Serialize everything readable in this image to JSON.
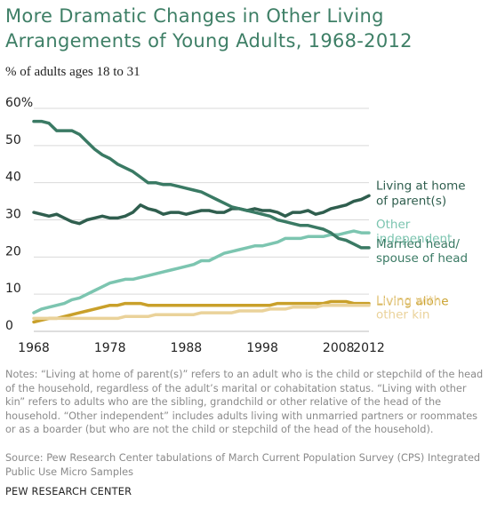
{
  "chart_data": {
    "type": "line",
    "title": "More Dramatic Changes in Other Living Arrangements of Young Adults, 1968-2012",
    "title_lines": [
      "More Dramatic Changes in Other Living",
      "Arrangements of Young Adults, 1968-2012"
    ],
    "subtitle": "% of adults ages 18 to 31",
    "xlabel": "",
    "ylabel": "",
    "xlim": [
      1968,
      2012
    ],
    "ylim": [
      0,
      60
    ],
    "x_ticks": [
      "1968",
      "1978",
      "1988",
      "1998",
      "2008",
      "2012"
    ],
    "x_tick_values": [
      1968,
      1978,
      1988,
      1998,
      2008,
      2012
    ],
    "y_ticks": [
      "0",
      "10",
      "20",
      "30",
      "40",
      "50",
      "60%"
    ],
    "y_tick_values": [
      0,
      10,
      20,
      30,
      40,
      50,
      60
    ],
    "grid": true,
    "legend": "direct labels at right end of lines",
    "x": [
      1968,
      1969,
      1970,
      1971,
      1972,
      1973,
      1974,
      1975,
      1976,
      1977,
      1978,
      1979,
      1980,
      1981,
      1982,
      1983,
      1984,
      1985,
      1986,
      1987,
      1988,
      1989,
      1990,
      1991,
      1992,
      1993,
      1994,
      1995,
      1996,
      1997,
      1998,
      1999,
      2000,
      2001,
      2002,
      2003,
      2004,
      2005,
      2006,
      2007,
      2008,
      2009,
      2010,
      2011,
      2012
    ],
    "series": [
      {
        "name": "Living at home of parent(s)",
        "label_lines": [
          "Living at home",
          "of parent(s)"
        ],
        "color": "#2f5e4e",
        "values": [
          32,
          31.5,
          31,
          31.5,
          30.5,
          29.5,
          29,
          30,
          30.5,
          31,
          30.5,
          30.5,
          31,
          32,
          34,
          33,
          32.5,
          31.5,
          32,
          32,
          31.5,
          32,
          32.5,
          32.5,
          32,
          32,
          33,
          33,
          32.5,
          33,
          32.5,
          32.5,
          32,
          31,
          32,
          32,
          32.5,
          31.5,
          32,
          33,
          33.5,
          34,
          35,
          35.5,
          36.5
        ]
      },
      {
        "name": "Other independent",
        "label_lines": [
          "Other",
          "independent"
        ],
        "color": "#7cc5b0",
        "values": [
          5,
          6,
          6.5,
          7,
          7.5,
          8.5,
          9,
          10,
          11,
          12,
          13,
          13.5,
          14,
          14,
          14.5,
          15,
          15.5,
          16,
          16.5,
          17,
          17.5,
          18,
          19,
          19,
          20,
          21,
          21.5,
          22,
          22.5,
          23,
          23,
          23.5,
          24,
          25,
          25,
          25,
          25.5,
          25.5,
          25.5,
          26,
          26,
          26.5,
          27,
          26.5,
          26.5
        ]
      },
      {
        "name": "Married head/spouse of head",
        "label_lines": [
          "Married head/",
          "spouse of head"
        ],
        "color": "#3a7a64",
        "values": [
          56.5,
          56.5,
          56,
          54,
          54,
          54,
          53,
          51,
          49,
          47.5,
          46.5,
          45,
          44,
          43,
          41.5,
          40,
          40,
          39.5,
          39.5,
          39,
          38.5,
          38,
          37.5,
          36.5,
          35.5,
          34.5,
          33.5,
          33,
          32.5,
          32,
          31.5,
          31,
          30,
          29.5,
          29,
          28.5,
          28.5,
          28,
          27.5,
          26.5,
          25,
          24.5,
          23.5,
          22.5,
          22.5
        ]
      },
      {
        "name": "Living alone",
        "label_lines": [
          "Living alone"
        ],
        "color": "#c9a02a",
        "values": [
          2.5,
          3,
          3.5,
          3.5,
          4,
          4.5,
          5,
          5.5,
          6,
          6.5,
          7,
          7,
          7.5,
          7.5,
          7.5,
          7,
          7,
          7,
          7,
          7,
          7,
          7,
          7,
          7,
          7,
          7,
          7,
          7,
          7,
          7,
          7,
          7,
          7.5,
          7.5,
          7.5,
          7.5,
          7.5,
          7.5,
          7.5,
          8,
          8,
          8,
          7.5,
          7.5,
          7.5
        ]
      },
      {
        "name": "Living with other kin",
        "label_lines": [
          "Living with",
          "other kin"
        ],
        "color": "#ead29a",
        "values": [
          3.5,
          3.5,
          3.5,
          3.5,
          3.5,
          3.5,
          3.5,
          3.5,
          3.5,
          3.5,
          3.5,
          3.5,
          4,
          4,
          4,
          4,
          4.5,
          4.5,
          4.5,
          4.5,
          4.5,
          4.5,
          5,
          5,
          5,
          5,
          5,
          5.5,
          5.5,
          5.5,
          5.5,
          6,
          6,
          6,
          6.5,
          6.5,
          6.5,
          6.5,
          7,
          7,
          7,
          7,
          7,
          7,
          7
        ]
      }
    ]
  },
  "notes": "Notes: “Living at home of parent(s)” refers to an adult who is the child or stepchild of the head of the household, regardless of the adult’s marital or cohabitation status. “Living with other kin” refers to adults who are the sibling, grandchild or other relative of the head of the household. “Other independent” includes adults living with unmarried partners or roommates or as a boarder (but who are not the child or stepchild of the head of the household).",
  "source": "Source: Pew Research Center tabulations of March Current Population Survey (CPS) Integrated Public Use Micro Samples",
  "organization": "PEW RESEARCH CENTER"
}
